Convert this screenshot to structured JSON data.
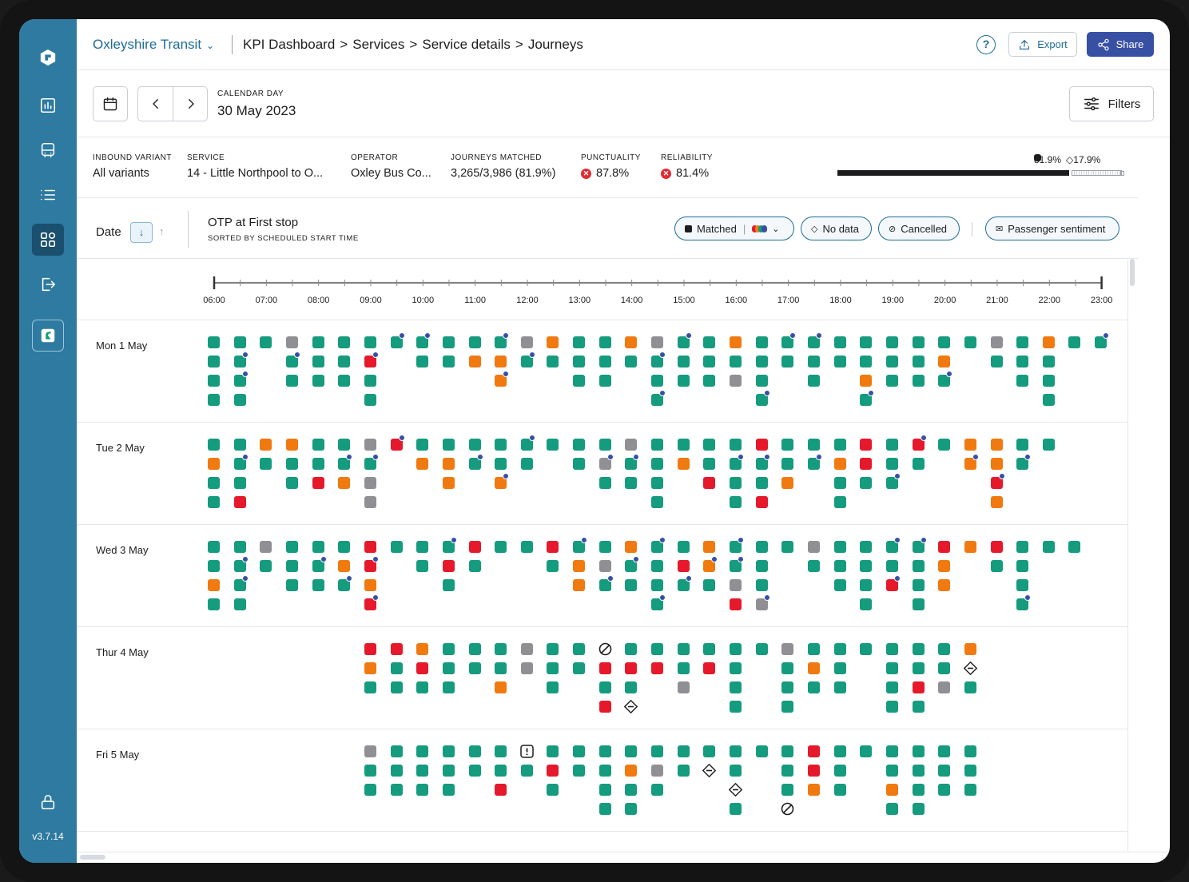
{
  "sidebar": {
    "version": "v3.7.14"
  },
  "header": {
    "org": "Oxleyshire Transit",
    "breadcrumb": [
      "KPI Dashboard",
      "Services",
      "Service details",
      "Journeys"
    ],
    "separator": ">",
    "help": "?",
    "export_label": "Export",
    "share_label": "Share"
  },
  "datebar": {
    "label": "CALENDAR DAY",
    "value": "30 May 2023",
    "filters_label": "Filters"
  },
  "stats": [
    {
      "key": "INBOUND VARIANT",
      "value": "All variants"
    },
    {
      "key": "SERVICE",
      "value": "14 - Little Northpool to O..."
    },
    {
      "key": "OPERATOR",
      "value": "Oxley Bus Co..."
    },
    {
      "key": "JOURNEYS MATCHED",
      "value": "3,265/3,986 (81.9%)"
    },
    {
      "key": "PUNCTUALITY",
      "value": "87.8%"
    },
    {
      "key": "RELIABILITY",
      "value": "81.4%"
    }
  ],
  "match_bar": {
    "matched_pct": 81.9,
    "nodata_pct": 17.9,
    "matched_label": "81.9%",
    "nodata_label": "17.9%"
  },
  "list_header": {
    "sort_label": "Date",
    "metric_title": "OTP at First stop",
    "metric_sub": "SORTED BY SCHEDULED START TIME",
    "chips": [
      "Matched",
      "No data",
      "Cancelled",
      "Passenger sentiment"
    ]
  },
  "colors": {
    "on_time": "#159b7d",
    "late": "#f07a10",
    "very_late": "#e5192b",
    "no_data": "#8f8f94",
    "sentiment": "#3750a4",
    "brand": "#2e7aa0"
  },
  "legend_meaning": {
    "g": "on time",
    "o": "late",
    "r": "very late",
    "y": "no data",
    "C": "cancelled",
    "N": "no data marker",
    "E": "exception"
  },
  "axis": {
    "ticks": [
      "06:00",
      "07:00",
      "08:00",
      "09:00",
      "10:00",
      "11:00",
      "12:00",
      "13:00",
      "14:00",
      "15:00",
      "16:00",
      "17:00",
      "18:00",
      "19:00",
      "20:00",
      "21:00",
      "22:00",
      "23:00"
    ]
  },
  "days": [
    {
      "label": "Mon 1 May",
      "columns": [
        "g,g,g,g",
        "g,g*,g*,g",
        "g",
        "y,g*,g",
        "g,g,g",
        "g,g,g",
        "g,r*,g,g",
        "g*",
        "g*,g",
        "g,g",
        "g,o",
        "g*,o,o*",
        "y,g*",
        "o,g",
        "g,g,g",
        "g,g,g",
        "o,g",
        "y,g*,g,g*",
        "g*,g,g",
        "g,g,g",
        "o,g,y",
        "g,g,g,g*",
        "g*,g",
        "g*,g,g",
        "g,g",
        "g,g,o,g*",
        "g,g,g",
        "g,g,g",
        "g,o,g*",
        "g",
        "y,g",
        "g,g,g",
        "o,g,g,g",
        "g",
        "g*"
      ]
    },
    {
      "label": "Tue 2 May",
      "columns": [
        "g,o,g,g",
        "g,g*,g,r",
        "o,g",
        "o,g,g",
        "g,g,r",
        "g,g*,o",
        "y,g*,y,y",
        "r*",
        "g,o",
        "g,o,o",
        "g,g*",
        "g,g,o*",
        "g*,g",
        "g",
        "g,g",
        "g,y*,g",
        "y,g*,g",
        "g,g,g,g",
        "g,o",
        "g,g,r",
        "g,g*,g,g",
        "r,g*,g,r",
        "g,g,o",
        "g,g*",
        "g,o,g,g",
        "r,r,g",
        "g,g,g*",
        "r*,g",
        "g",
        "o,o*",
        "o,o,r*,o",
        "g,g*",
        "g"
      ]
    },
    {
      "label": "Wed 3 May",
      "columns": [
        "g,g,o,g",
        "g,g*,g*,g",
        "y,g",
        "g,g,g",
        "g,g*,g",
        "g,o,g*",
        "r,r*,o,r*",
        "g",
        "g,g",
        "g*,r,g",
        "r,g",
        "g",
        "g",
        "r,g",
        "g*,o,o",
        "g,y,g*",
        "o,g*,g",
        "g*,g,g,g*",
        "g,r,g*",
        "o,o*,g",
        "g*,g*,y,r",
        "g,g,g,y*",
        "g",
        "y,g",
        "g,g,g",
        "g,g,g,g",
        "g*,g,r*",
        "g*,g,g,g",
        "r,o,o",
        "o",
        "r,g",
        "g,g,g,g*",
        "g",
        "g"
      ]
    },
    {
      "label": "Thur 4 May",
      "columns": [
        "",
        "",
        "",
        "",
        "",
        "",
        "r,o,g",
        "r,g,g",
        "o,r,g",
        "g,g,g",
        "g,g",
        "g,g,o",
        "y,y",
        "g,g,g",
        "g,g",
        "C,r,g,r",
        "g,r,g,N",
        "g,r",
        "g,g,y",
        "g,r",
        "g,g,g,g",
        "g",
        "y,g,g,g",
        "g,o,g",
        "g,g,g",
        "g",
        "g,g,g,g",
        "g,g,r,g",
        "g,g,y",
        "o,N,g"
      ]
    },
    {
      "label": "Fri 5 May",
      "columns": [
        "",
        "",
        "",
        "",
        "",
        "",
        "y,g,g",
        "g,g,g",
        "g,g,g",
        "g,g,g",
        "g,g",
        "g,g,r",
        "E,g",
        "g,r,g",
        "g,g",
        "g,g,g,g",
        "g,o,g,g",
        "g,y,g",
        "g,g",
        "g,N",
        "g,g,N,g",
        "g",
        "g,g,g,C",
        "r,r,o",
        "g,g,g",
        "g",
        "g,g,o,g",
        "g,g,g,g",
        "g,g,g",
        "g,g,g"
      ]
    }
  ]
}
